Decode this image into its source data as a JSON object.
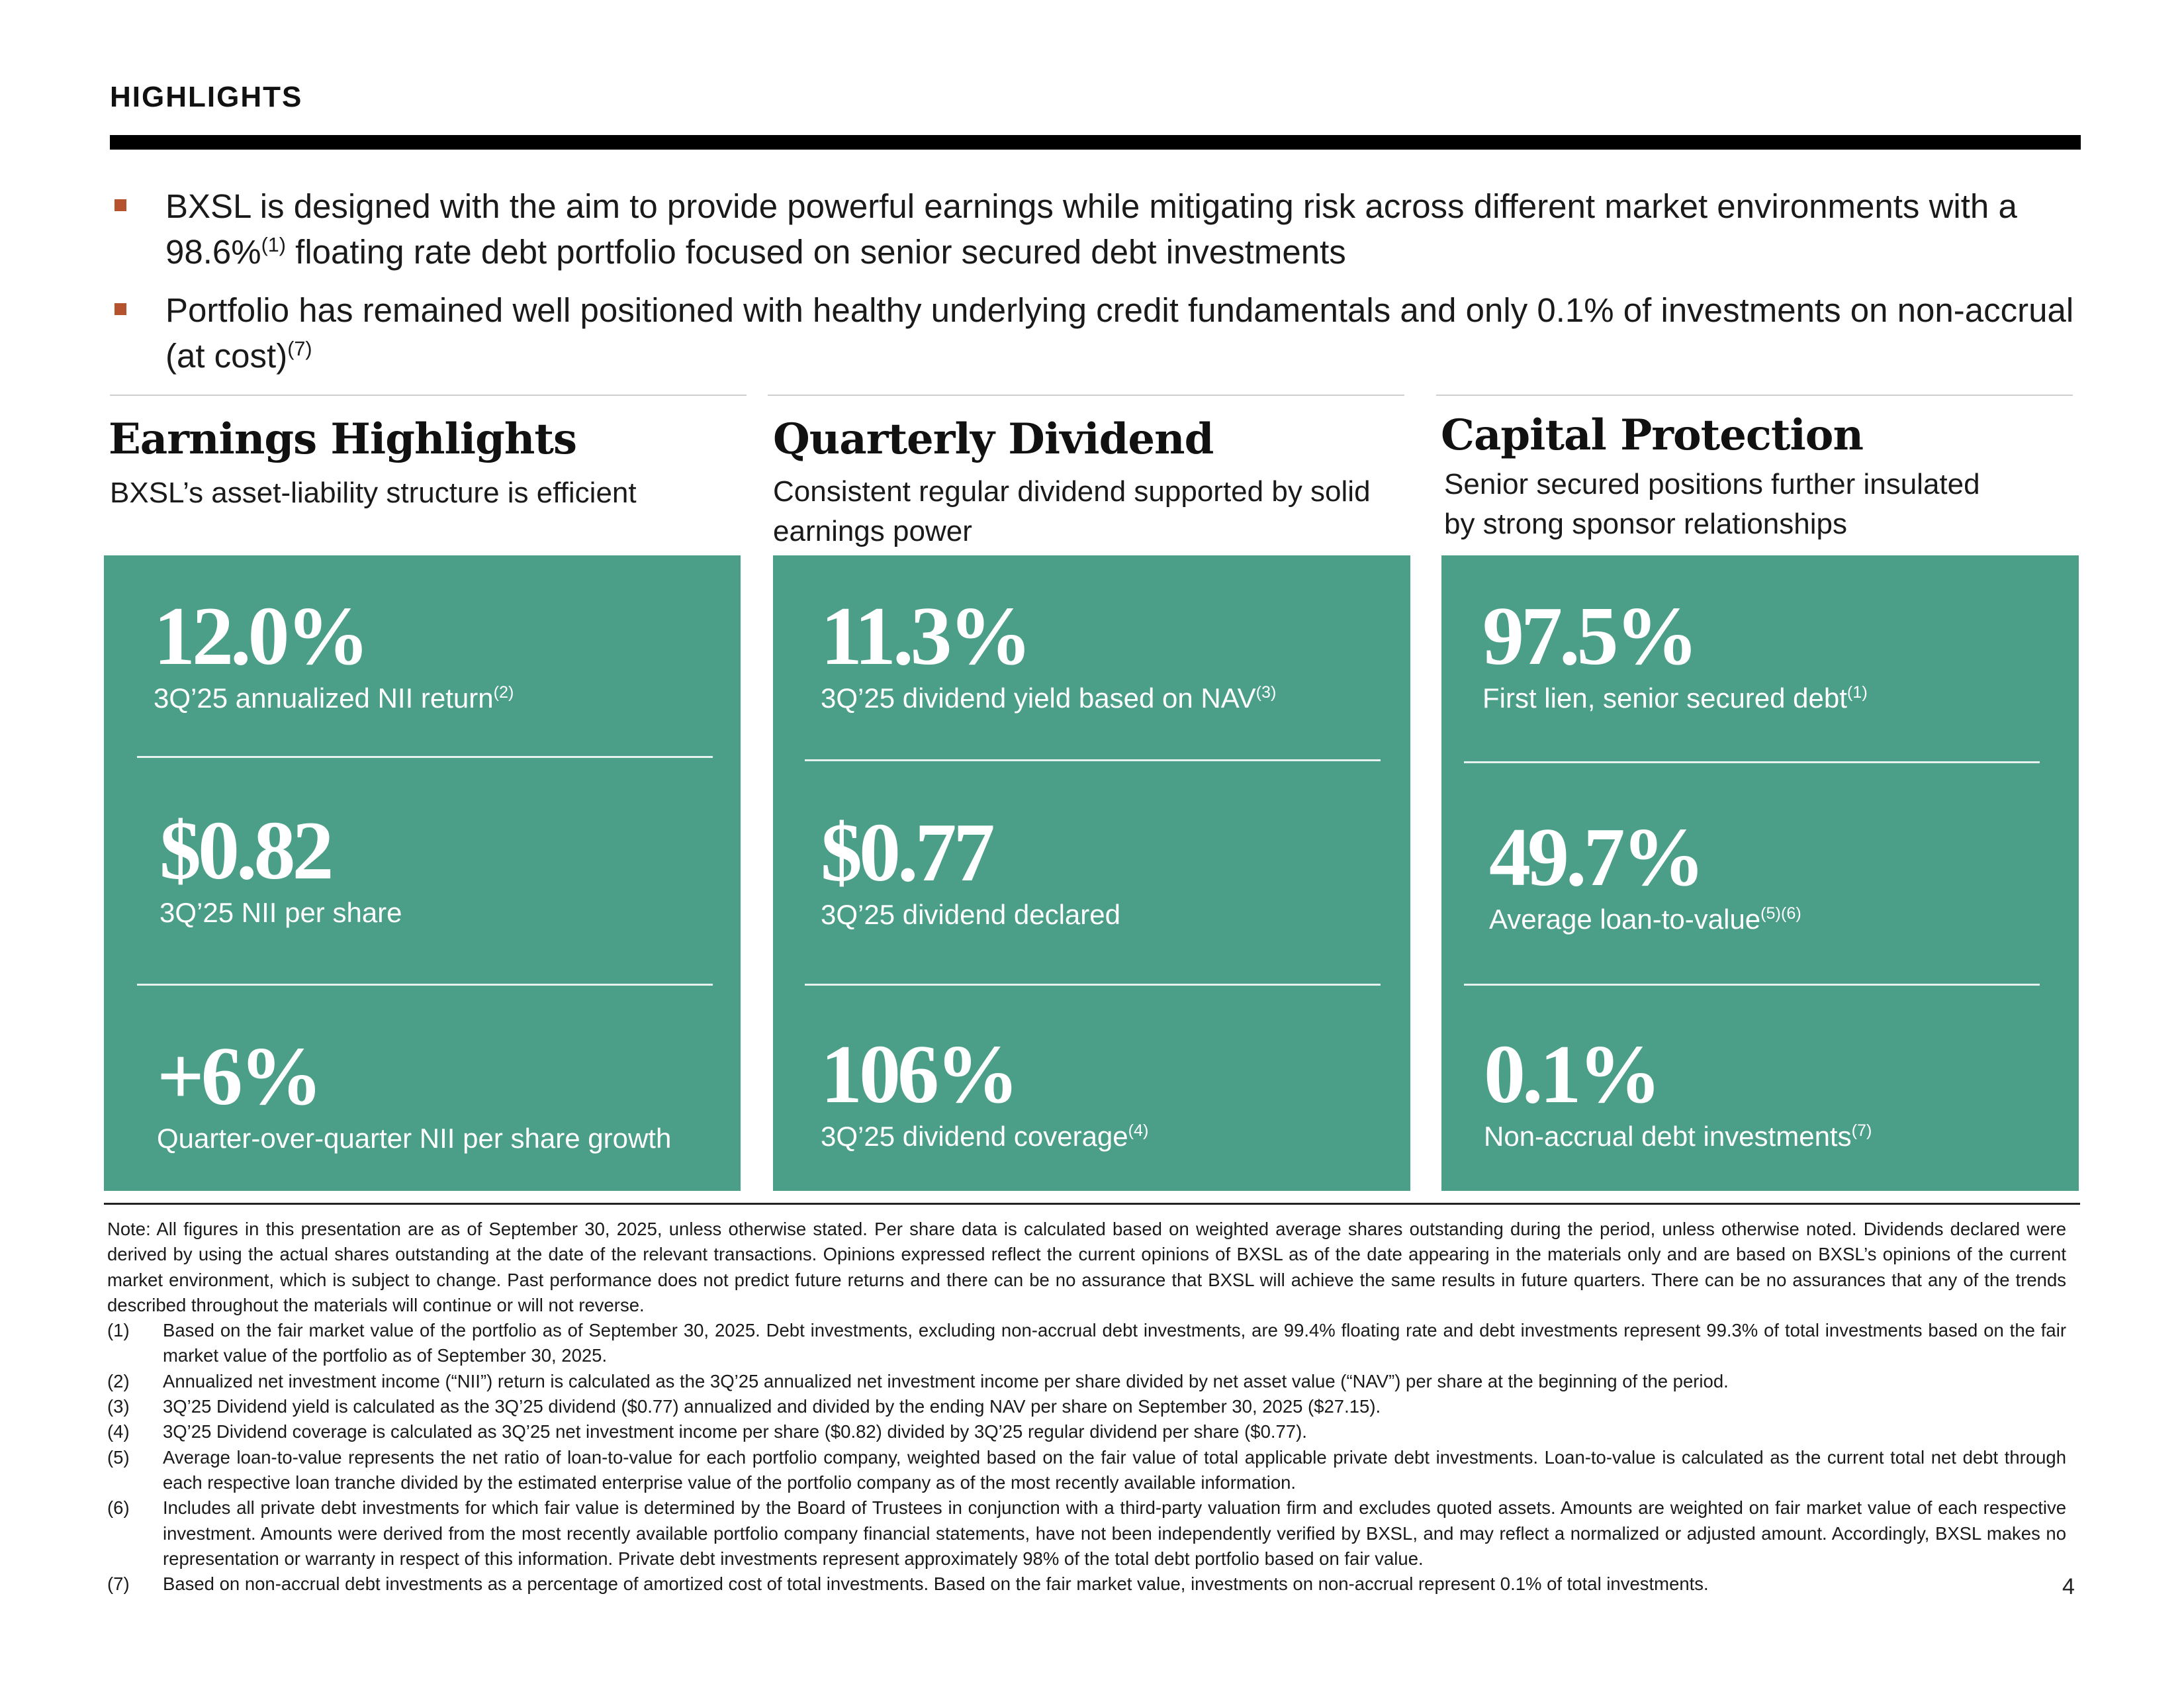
{
  "header": {
    "title": "HIGHLIGHTS"
  },
  "bullets": [
    {
      "text": "BXSL is designed with the aim to provide powerful earnings while mitigating risk across different market environments with a 98.6%",
      "sup": "(1)",
      "text2": " floating rate debt portfolio focused on senior secured debt investments"
    },
    {
      "text": "Portfolio has remained well positioned with healthy underlying credit fundamentals and only 0.1% of investments on non-accrual (at cost)",
      "sup": "(7)"
    }
  ],
  "columns": [
    {
      "title": "Earnings Highlights",
      "subtitle": "BXSL’s asset-liability structure is efficient",
      "kpis": [
        {
          "value": "12.0%",
          "label": "3Q’25 annualized NII return",
          "sup": "(2)"
        },
        {
          "value": "$0.82",
          "label": "3Q’25 NII per share",
          "sup": ""
        },
        {
          "value": "+6%",
          "label": "Quarter-over-quarter NII per share growth",
          "sup": ""
        }
      ]
    },
    {
      "title": "Quarterly Dividend",
      "subtitle": "Consistent regular dividend supported by solid earnings power",
      "kpis": [
        {
          "value": "11.3%",
          "label": "3Q’25 dividend yield based on NAV",
          "sup": "(3)"
        },
        {
          "value": "$0.77",
          "label": "3Q’25 dividend declared",
          "sup": ""
        },
        {
          "value": "106%",
          "label": "3Q’25 dividend coverage",
          "sup": "(4)"
        }
      ]
    },
    {
      "title": "Capital Protection",
      "subtitle": "Senior secured positions further insulated by strong sponsor relationships",
      "kpis": [
        {
          "value": "97.5%",
          "label": "First lien, senior secured debt",
          "sup": "(1)"
        },
        {
          "value": "49.7%",
          "label": "Average loan-to-value",
          "sup": "(5)(6)"
        },
        {
          "value": "0.1%",
          "label": "Non-accrual debt investments",
          "sup": "(7)"
        }
      ]
    }
  ],
  "notes": {
    "intro": "Note: All figures in this presentation are as of September 30, 2025, unless otherwise stated. Per share data is calculated based on weighted average shares outstanding during the period, unless otherwise noted. Dividends declared were derived by using the actual shares outstanding at the date of the relevant transactions. Opinions expressed reflect the current opinions of BXSL as of the date appearing in the materials only and are based on BXSL’s opinions of the current market environment, which is subject to change. Past performance does not predict future returns and there can be no assurance that BXSL will achieve the same results in future quarters. There can be no assurances that any of the trends described throughout the materials will continue or will not reverse.",
    "footnotes": [
      {
        "num": "(1)",
        "text": "Based on the fair market value of the portfolio as of September 30, 2025. Debt investments, excluding non-accrual debt investments, are 99.4% floating rate and debt investments represent 99.3% of total investments based on the fair market value of the portfolio as of September 30, 2025."
      },
      {
        "num": "(2)",
        "text": "Annualized net investment income (“NII”) return is calculated as the 3Q’25 annualized net investment income per share divided by net asset value (“NAV”) per share at the beginning of the period."
      },
      {
        "num": "(3)",
        "text": "3Q’25 Dividend yield is calculated as the 3Q’25 dividend ($0.77) annualized and divided by the ending NAV per share on September 30, 2025 ($27.15)."
      },
      {
        "num": "(4)",
        "text": "3Q’25 Dividend coverage is calculated as 3Q’25 net investment income per share ($0.82) divided by 3Q’25 regular dividend per share ($0.77)."
      },
      {
        "num": "(5)",
        "text": "Average loan-to-value represents the net ratio of loan-to-value for each portfolio company, weighted based on the fair value of total applicable private debt investments. Loan-to-value is calculated as the current total net debt through each respective loan tranche divided by the estimated enterprise value of the portfolio company as of the most recently available information."
      },
      {
        "num": "(6)",
        "text": "Includes all private debt investments for which fair value is determined by the Board of Trustees in conjunction with a third-party valuation firm and excludes quoted assets. Amounts are weighted on fair market value of each respective investment. Amounts were derived from the most recently available portfolio company financial statements, have not been independently verified by BXSL, and may reflect a normalized or adjusted amount. Accordingly, BXSL makes no representation or warranty in respect of this information. Private debt investments represent approximately 98% of the total debt portfolio based on fair value."
      },
      {
        "num": "(7)",
        "text": "Based on non-accrual debt investments as a percentage of amortized cost of total investments. Based on the fair market value, investments on non-accrual represent 0.1% of total investments."
      }
    ]
  },
  "page_number": "4"
}
